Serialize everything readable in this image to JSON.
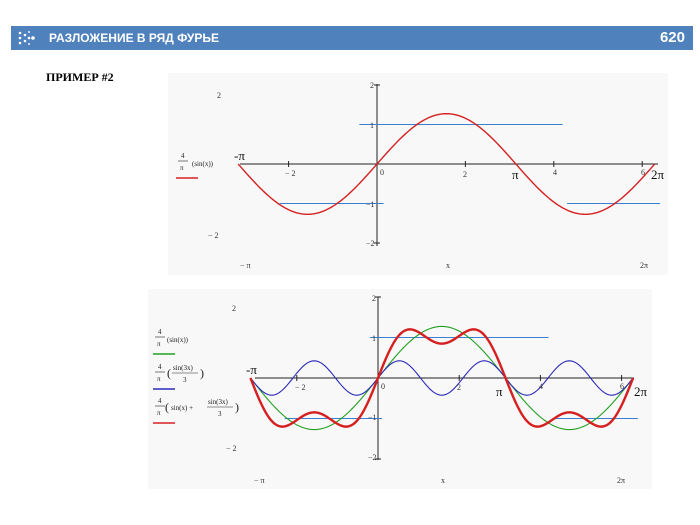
{
  "header": {
    "title": "РАЗЛОЖЕНИЕ В РЯД ФУРЬЕ",
    "page_number": "620",
    "logo_icon": "dots-chevron-icon",
    "bar_color": "#4f81bd"
  },
  "subtitle": "ПРИМЕР #2",
  "chart_data": [
    {
      "type": "line",
      "xlabel": "x",
      "x_range_labels": [
        "− π",
        "2π"
      ],
      "y_range_labels": [
        "2",
        "− 2"
      ],
      "xlim": [
        -3.1416,
        6.2832
      ],
      "ylim": [
        -2,
        2
      ],
      "x_ticks": [
        "− 2",
        "0",
        "2",
        "4",
        "6"
      ],
      "y_ticks": [
        "2",
        "1",
        "−1",
        "−2"
      ],
      "annotations": {
        "neg_pi": "-π",
        "pi": "π",
        "two_pi": "2π"
      },
      "legend": [
        {
          "coef_num": "4",
          "coef_den": "π",
          "expr": "(sin(x))",
          "color": "#d62020"
        }
      ],
      "series": [
        {
          "function": "4/π·sin(x)",
          "color": "#d62020",
          "samples": 61,
          "x": [
            -3.1416,
            6.2832
          ]
        }
      ],
      "reference_lines": [
        {
          "y": 1,
          "x": [
            -0.4,
            4.2
          ],
          "color": "#3b7fd0"
        },
        {
          "y": -1,
          "x": [
            -2.2,
            0.15
          ],
          "color": "#3b7fd0"
        },
        {
          "y": -1,
          "x": [
            4.3,
            6.4
          ],
          "color": "#3b7fd0"
        }
      ]
    },
    {
      "type": "line",
      "xlabel": "x",
      "x_range_labels": [
        "− π",
        "2π"
      ],
      "y_range_labels": [
        "2",
        "− 2"
      ],
      "xlim": [
        -3.1416,
        6.2832
      ],
      "ylim": [
        -2,
        2
      ],
      "x_ticks": [
        "− 2",
        "0",
        "2",
        "4",
        "6"
      ],
      "y_ticks": [
        "2",
        "1",
        "−1",
        "−2"
      ],
      "annotations": {
        "neg_pi": "-π",
        "pi": "π",
        "two_pi": "2π"
      },
      "legend": [
        {
          "coef_num": "4",
          "coef_den": "π",
          "expr": "(sin(x))",
          "color": "#22a022"
        },
        {
          "coef_num": "4",
          "coef_den": "π",
          "expr_num": "sin(3x)",
          "expr_den": "3",
          "color": "#2a2ab8"
        },
        {
          "coef_num": "4",
          "coef_den": "π",
          "expr_prefix": "sin(x) +",
          "expr_num": "sin(3x)",
          "expr_den": "3",
          "color": "#d62020"
        }
      ],
      "series": [
        {
          "function": "4/π·sin(x)",
          "color": "#22a022"
        },
        {
          "function": "4/π·sin(3x)/3",
          "color": "#2a2ab8"
        },
        {
          "function": "4/π·(sin(x)+sin(3x)/3)",
          "color": "#d62020"
        }
      ],
      "reference_lines": [
        {
          "y": 1,
          "x": [
            -0.2,
            4.2
          ],
          "color": "#3b7fd0"
        },
        {
          "y": -1,
          "x": [
            -2.3,
            0.1
          ],
          "color": "#3b7fd0"
        },
        {
          "y": -1,
          "x": [
            4.3,
            6.4
          ],
          "color": "#3b7fd0"
        }
      ]
    }
  ]
}
